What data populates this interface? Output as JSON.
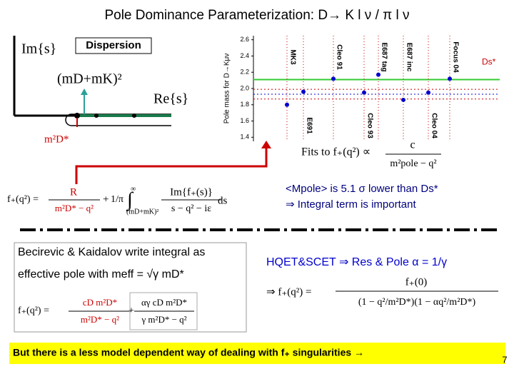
{
  "title": "Pole Dominance Parameterization: D→ K l ν / π l ν",
  "diagram": {
    "box_label": "Dispersion",
    "im_axis": "Im{s}",
    "threshold": "(mD+mK)²",
    "re_axis": "Re{s}",
    "pole": "m²D*"
  },
  "plot": {
    "y_label": "Pole mass for D→Kμν",
    "ylim": [
      1.35,
      2.65
    ],
    "yticks": [
      1.4,
      1.6,
      1.8,
      {
        "value": 2,
        "label": "2.0"
      },
      2.2,
      2.4,
      2.6
    ],
    "points": [
      {
        "label": "MK3",
        "value": 1.8
      },
      {
        "label": "E691",
        "value": 1.96
      },
      {
        "label": "Cleo 91",
        "value": 2.12
      },
      {
        "label": "Cleo 93",
        "value": 1.95
      },
      {
        "label": "E687 tag",
        "value": 2.17
      },
      {
        "label": "E687 inc",
        "value": 1.86
      },
      {
        "label": "Cleo 04",
        "value": 1.95
      },
      {
        "label": "Focus 04",
        "value": 2.12
      }
    ],
    "ds_star": {
      "label": "Ds*",
      "value": 2.11
    },
    "fit": {
      "value": 1.93,
      "band": [
        1.87,
        1.99
      ]
    }
  },
  "fit_text": {
    "prefix": "Fits to f₊(q²) ∝",
    "numerator": "c",
    "denominator": "m²pole − q²"
  },
  "formula1": {
    "lhs": "f₊(q²) =",
    "t1_num": "R",
    "t1_den": "m²D* − q²",
    "plus": "+",
    "pi": "1/π",
    "integral": "∫",
    "upper": "∞",
    "lower": "(mD+mK)²",
    "t2_num": "Im{f₊(s)}",
    "t2_den": "s − q² − iε",
    "ds": "ds"
  },
  "conclusion": {
    "line1": "<Mpole>  is 5.1 σ lower than Ds*",
    "line2": "⇒  Integral term is important"
  },
  "box": {
    "line1": "Becirevic & Kaidalov write integral  as",
    "line2": "effective pole  with meff = √γ mD*",
    "lhs": "f₊(q²) =",
    "t1_num": "cD m²D*",
    "t1_den": "m²D* − q²",
    "plus": "+",
    "t2_num": "αγ cD m²D*",
    "t2_den": "γ m²D* − q²"
  },
  "hqet": {
    "line1": "HQET&SCET  ⇒ Res & Pole  α = 1/γ",
    "lhs": "⇒ f₊(q²) =",
    "num": "f₊(0)",
    "den": "(1 − q²/m²D*)(1 − αq²/m²D*)"
  },
  "footer": {
    "text": "But there is a less model dependent way of dealing with f₊ singularities →",
    "page": "7"
  }
}
